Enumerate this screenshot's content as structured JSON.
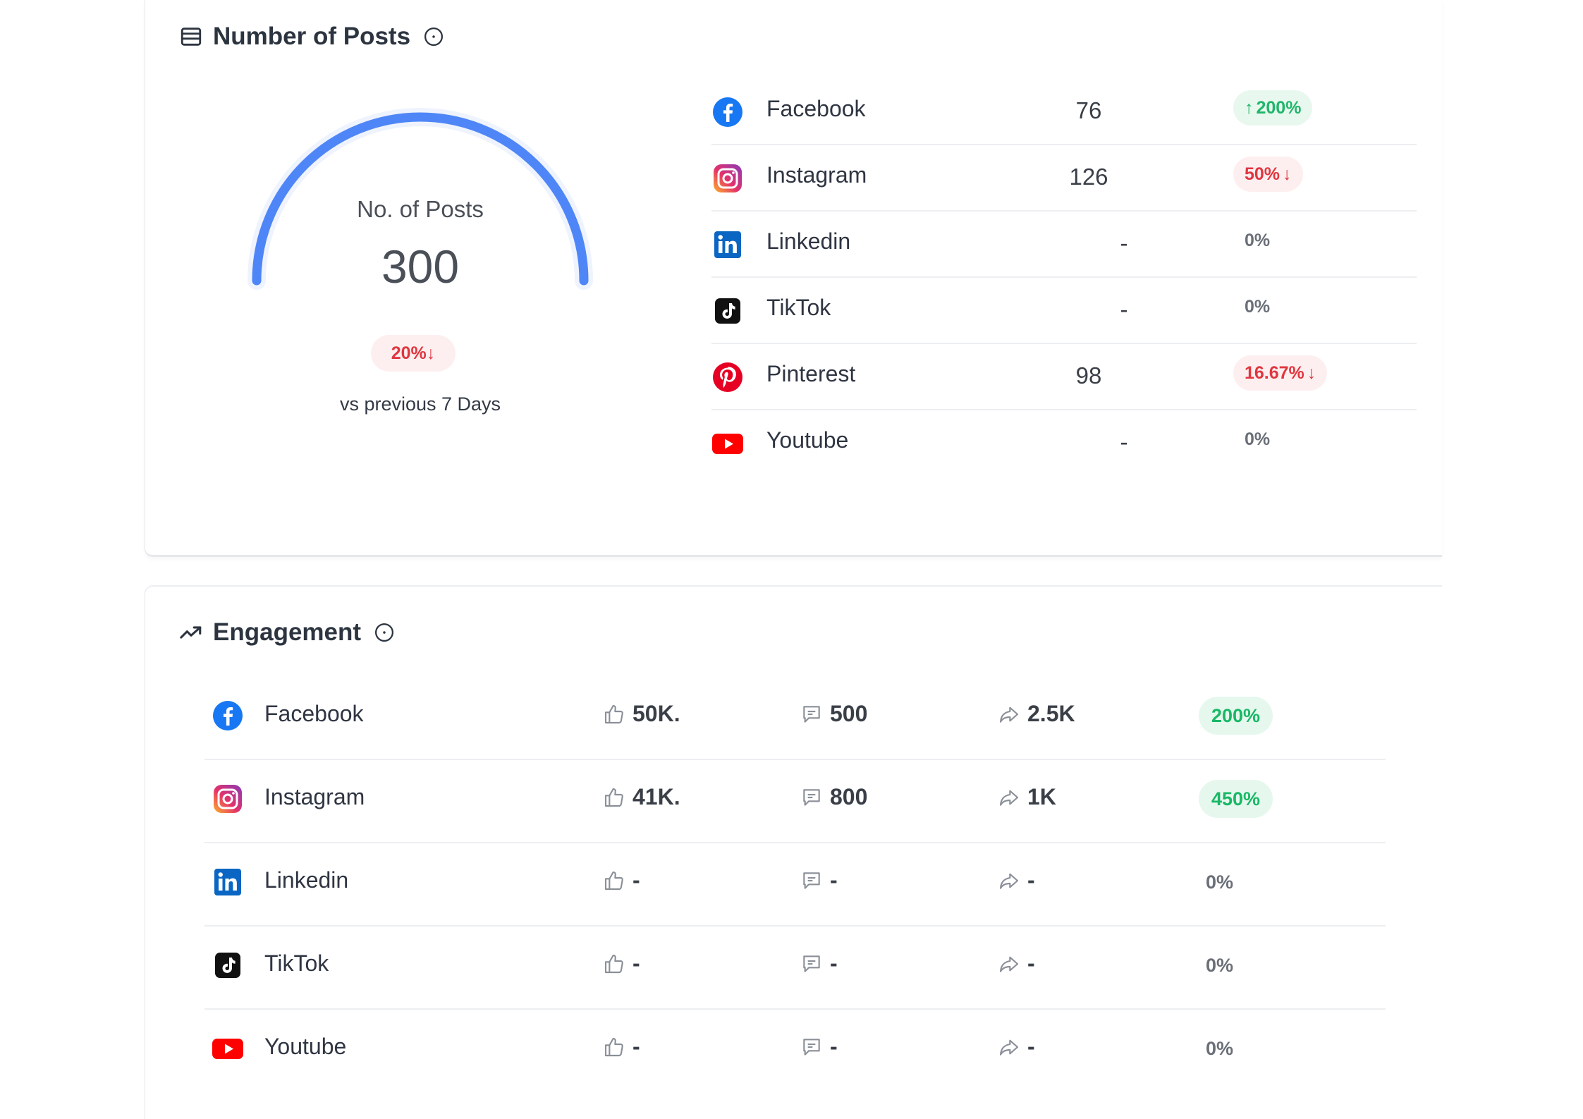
{
  "posts": {
    "title": "Number of Posts",
    "gauge": {
      "label": "No. of Posts",
      "value": "300",
      "change": "20%",
      "caption": "vs previous 7 Days"
    },
    "rows": [
      {
        "name": "Facebook",
        "icon": "facebook-icon",
        "count": "76",
        "change": "200%",
        "dir": "up"
      },
      {
        "name": "Instagram",
        "icon": "instagram-icon",
        "count": "126",
        "change": "50%",
        "dir": "down"
      },
      {
        "name": "Linkedin",
        "icon": "linkedin-icon",
        "count": "-",
        "change": "0%",
        "dir": "neutral"
      },
      {
        "name": "TikTok",
        "icon": "tiktok-icon",
        "count": "-",
        "change": "0%",
        "dir": "neutral"
      },
      {
        "name": "Pinterest",
        "icon": "pinterest-icon",
        "count": "98",
        "change": "16.67%",
        "dir": "down"
      },
      {
        "name": "Youtube",
        "icon": "youtube-icon",
        "count": "-",
        "change": "0%",
        "dir": "neutral"
      }
    ]
  },
  "engagement": {
    "title": "Engagement",
    "rows": [
      {
        "name": "Facebook",
        "icon": "facebook-icon",
        "likes": "50K.",
        "comments": "500",
        "shares": "2.5K",
        "change": "200%",
        "dir": "up"
      },
      {
        "name": "Instagram",
        "icon": "instagram-icon",
        "likes": "41K.",
        "comments": "800",
        "shares": "1K",
        "change": "450%",
        "dir": "up"
      },
      {
        "name": "Linkedin",
        "icon": "linkedin-icon",
        "likes": "-",
        "comments": "-",
        "shares": "-",
        "change": "0%",
        "dir": "neutral"
      },
      {
        "name": "TikTok",
        "icon": "tiktok-icon",
        "likes": "-",
        "comments": "-",
        "shares": "-",
        "change": "0%",
        "dir": "neutral"
      },
      {
        "name": "Youtube",
        "icon": "youtube-icon",
        "likes": "-",
        "comments": "-",
        "shares": "-",
        "change": "0%",
        "dir": "neutral"
      }
    ]
  },
  "colors": {
    "gauge_arc": "#4f86f7",
    "up": "#21b66a",
    "down": "#e0363f",
    "facebook": "#1877f2",
    "linkedin": "#0a66c2",
    "pinterest": "#e60023",
    "youtube": "#ff0000",
    "tiktok": "#111111"
  }
}
